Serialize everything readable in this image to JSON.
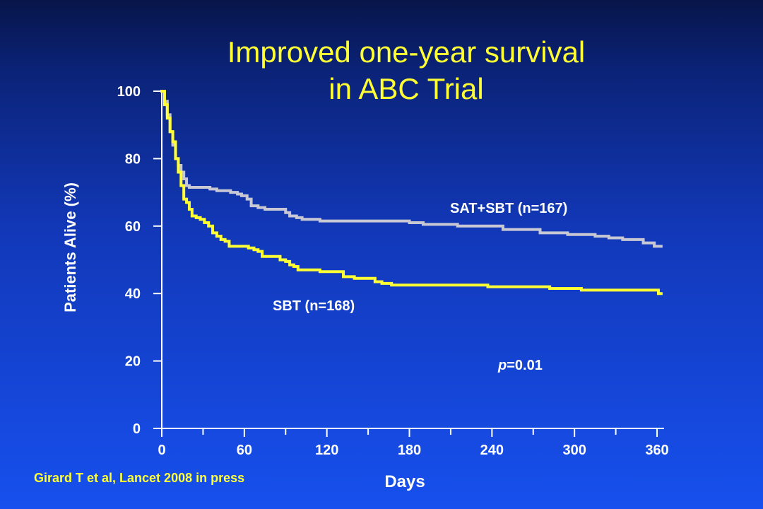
{
  "title_line1": "Improved one-year survival",
  "title_line2": "in ABC Trial",
  "citation": "Girard T et al, Lancet 2008 in press",
  "colors": {
    "text": "#ffffff",
    "title": "#ffff33",
    "series_sbt": "#ffff33",
    "series_sat_sbt": "#c8c8d4"
  },
  "chart_data": {
    "type": "line",
    "title": "Improved one-year survival in ABC Trial",
    "xlabel": "Days",
    "ylabel": "Patients Alive (%)",
    "xlim": [
      0,
      360
    ],
    "ylim": [
      0,
      100
    ],
    "x_ticks": [
      0,
      60,
      120,
      180,
      240,
      300,
      360
    ],
    "y_ticks": [
      0,
      20,
      40,
      60,
      80,
      100
    ],
    "grid": false,
    "step": true,
    "series": [
      {
        "name": "SAT+SBT (n=167)",
        "color": "#c8c8d4",
        "points": [
          [
            0,
            100
          ],
          [
            2,
            97
          ],
          [
            4,
            93
          ],
          [
            6,
            88
          ],
          [
            8,
            84
          ],
          [
            10,
            80
          ],
          [
            12,
            78
          ],
          [
            14,
            76
          ],
          [
            16,
            74
          ],
          [
            18,
            72
          ],
          [
            20,
            71.5
          ],
          [
            35,
            71
          ],
          [
            40,
            70.5
          ],
          [
            50,
            70
          ],
          [
            55,
            69.5
          ],
          [
            58,
            69
          ],
          [
            62,
            68
          ],
          [
            65,
            66
          ],
          [
            70,
            65.5
          ],
          [
            75,
            65
          ],
          [
            88,
            65
          ],
          [
            90,
            64
          ],
          [
            93,
            63
          ],
          [
            98,
            62.5
          ],
          [
            102,
            62
          ],
          [
            115,
            61.5
          ],
          [
            180,
            61
          ],
          [
            190,
            60.5
          ],
          [
            215,
            60
          ],
          [
            245,
            60
          ],
          [
            248,
            59
          ],
          [
            275,
            58
          ],
          [
            295,
            57.5
          ],
          [
            315,
            57
          ],
          [
            325,
            56.5
          ],
          [
            335,
            56
          ],
          [
            350,
            55
          ],
          [
            358,
            54
          ],
          [
            363,
            54
          ]
        ]
      },
      {
        "name": "SBT (n=168)",
        "color": "#ffff33",
        "points": [
          [
            0,
            100
          ],
          [
            2,
            96
          ],
          [
            4,
            92
          ],
          [
            6,
            88
          ],
          [
            8,
            85
          ],
          [
            10,
            80
          ],
          [
            12,
            76
          ],
          [
            14,
            72
          ],
          [
            16,
            68
          ],
          [
            18,
            67
          ],
          [
            20,
            65
          ],
          [
            22,
            63
          ],
          [
            25,
            62.5
          ],
          [
            28,
            62
          ],
          [
            31,
            61
          ],
          [
            34,
            60
          ],
          [
            37,
            58
          ],
          [
            40,
            57
          ],
          [
            43,
            56
          ],
          [
            46,
            55.5
          ],
          [
            49,
            54
          ],
          [
            60,
            54
          ],
          [
            63,
            53.5
          ],
          [
            67,
            53
          ],
          [
            70,
            52.5
          ],
          [
            73,
            51
          ],
          [
            83,
            51
          ],
          [
            86,
            50
          ],
          [
            90,
            49.5
          ],
          [
            93,
            48.5
          ],
          [
            96,
            48
          ],
          [
            99,
            47
          ],
          [
            112,
            47
          ],
          [
            115,
            46.5
          ],
          [
            130,
            46.5
          ],
          [
            132,
            45
          ],
          [
            140,
            44.5
          ],
          [
            152,
            44.5
          ],
          [
            155,
            43.5
          ],
          [
            160,
            43
          ],
          [
            167,
            42.5
          ],
          [
            235,
            42.5
          ],
          [
            237,
            42
          ],
          [
            280,
            42
          ],
          [
            282,
            41.5
          ],
          [
            303,
            41.5
          ],
          [
            305,
            41
          ],
          [
            360,
            41
          ],
          [
            361,
            40
          ],
          [
            363,
            40
          ]
        ]
      }
    ],
    "annotations": [
      {
        "text": "SAT+SBT (n=167)"
      },
      {
        "text": "SBT (n=168)"
      },
      {
        "text": "p=0.01",
        "italic_prefix": "p"
      }
    ]
  }
}
